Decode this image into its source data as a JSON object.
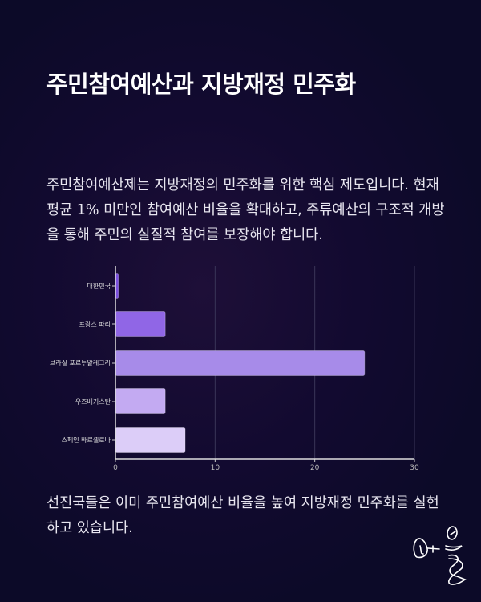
{
  "title": "주민참여예산과 지방재정 민주화",
  "intro": "주민참여예산제는 지방재정의 민주화를 위한 핵심 제도입니다. 현재 평균 1% 미만인 참여예산 비율을 확대하고, 주류예산의 구조적 개방을 통해 주민의 실질적 참여를 보장해야 합니다.",
  "conclusion": "선진국들은 이미 주민참여예산 비율을 높여 지방재정 민주화를 실현하고 있습니다.",
  "logo_text": "마을",
  "chart_data": {
    "type": "bar",
    "orientation": "horizontal",
    "categories": [
      "대한민국",
      "프랑스 파리",
      "브라질 포르투알레그리",
      "우즈베키스탄",
      "스페인 바르셀로나"
    ],
    "values": [
      0.3,
      5,
      25,
      5,
      7
    ],
    "colors": [
      "#7b4fe0",
      "#9066e6",
      "#a78be9",
      "#c3aaf2",
      "#dccdf8"
    ],
    "xlim": [
      0,
      30
    ],
    "xticks": [
      "0",
      "10",
      "20",
      "30"
    ],
    "grid": true,
    "title": "",
    "xlabel": "",
    "ylabel": ""
  }
}
